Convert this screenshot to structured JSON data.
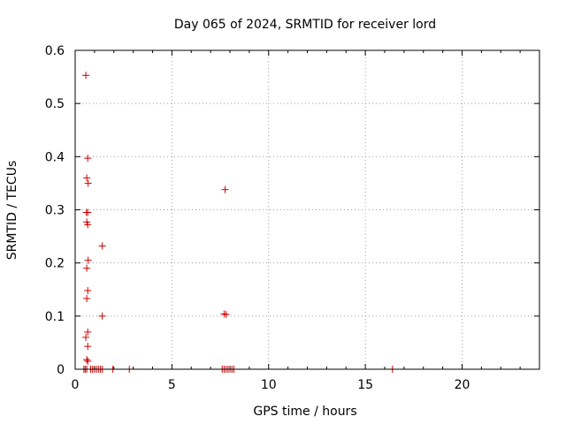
{
  "chart_data": {
    "type": "scatter",
    "title": "Day 065 of 2024, SRMTID for receiver lord",
    "xlabel": "GPS time / hours",
    "ylabel": "SRMTID / TECUs",
    "xlim": [
      0,
      24
    ],
    "ylim": [
      0,
      0.6
    ],
    "xticks": [
      0,
      5,
      10,
      15,
      20
    ],
    "yticks": [
      0,
      0.1,
      0.2,
      0.3,
      0.4,
      0.5,
      0.6
    ],
    "xtick_labels": [
      "0",
      "5",
      "10",
      "15",
      "20"
    ],
    "ytick_labels": [
      "0",
      "0.1",
      "0.2",
      "0.3",
      "0.4",
      "0.5",
      "0.6"
    ],
    "grid": true,
    "legend": "none",
    "marker": "plus",
    "color": "#cc0000",
    "series": [
      {
        "points": [
          [
            0.55,
            0.553
          ],
          [
            0.65,
            0.397
          ],
          [
            0.6,
            0.36
          ],
          [
            0.67,
            0.35
          ],
          [
            0.58,
            0.295
          ],
          [
            0.65,
            0.295
          ],
          [
            0.6,
            0.277
          ],
          [
            0.65,
            0.272
          ],
          [
            1.4,
            0.232
          ],
          [
            0.67,
            0.205
          ],
          [
            0.6,
            0.19
          ],
          [
            0.65,
            0.148
          ],
          [
            0.6,
            0.133
          ],
          [
            1.4,
            0.1
          ],
          [
            0.65,
            0.07
          ],
          [
            0.55,
            0.06
          ],
          [
            0.65,
            0.043
          ],
          [
            0.6,
            0.018
          ],
          [
            0.65,
            0.015
          ],
          [
            0.45,
            0.0
          ],
          [
            0.52,
            0.0
          ],
          [
            0.6,
            0.0
          ],
          [
            0.8,
            0.0
          ],
          [
            0.9,
            0.0
          ],
          [
            1.0,
            0.0
          ],
          [
            1.1,
            0.0
          ],
          [
            1.2,
            0.0
          ],
          [
            1.3,
            0.0
          ],
          [
            1.4,
            0.0
          ],
          [
            1.95,
            0.0
          ],
          [
            2.8,
            0.0
          ],
          [
            7.75,
            0.338
          ],
          [
            7.7,
            0.104
          ],
          [
            7.8,
            0.103
          ],
          [
            7.6,
            0.0
          ],
          [
            7.7,
            0.0
          ],
          [
            7.8,
            0.0
          ],
          [
            7.9,
            0.0
          ],
          [
            8.0,
            0.0
          ],
          [
            8.1,
            0.0
          ],
          [
            8.2,
            0.0
          ],
          [
            16.4,
            0.0
          ]
        ]
      }
    ]
  }
}
